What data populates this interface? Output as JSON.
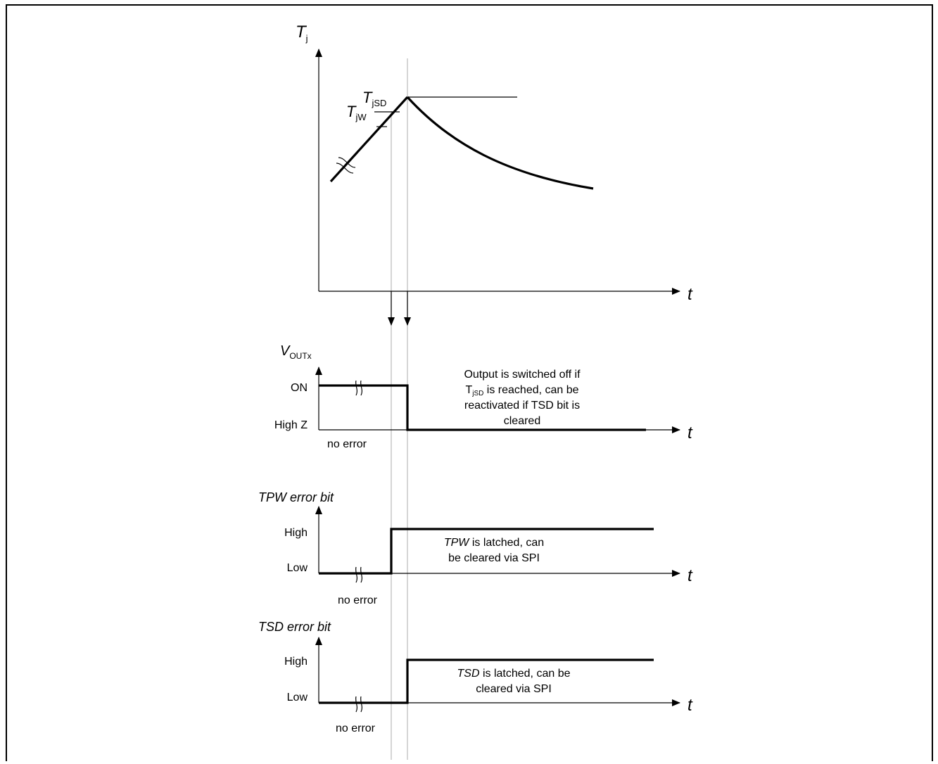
{
  "diagram": {
    "top_plot": {
      "y_axis_label": "T",
      "y_axis_sub": "j",
      "x_axis_label": "t",
      "tjsd_label": "T",
      "tjsd_sub": "jSD",
      "tjw_label": "T",
      "tjw_sub": "jW"
    },
    "vout_plot": {
      "y_axis_label": "V",
      "y_axis_sub": "OUTx",
      "level_high": "ON",
      "level_low": "High Z",
      "x_axis_label": "t",
      "state_text": "no error",
      "note_line1": "Output is switched off if",
      "note_line2_pre": "T",
      "note_line2_sub": "jSD",
      "note_line2_post": " is reached, can be",
      "note_line3": "reactivated if TSD bit is",
      "note_line4": "cleared"
    },
    "tpw_plot": {
      "title": "TPW error bit",
      "level_high": "High",
      "level_low": "Low",
      "x_axis_label": "t",
      "state_text": "no error",
      "note_ital": "TPW",
      "note_line1_rest": " is latched, can",
      "note_line2": "be cleared via SPI"
    },
    "tsd_plot": {
      "title": "TSD error bit",
      "level_high": "High",
      "level_low": "Low",
      "x_axis_label": "t",
      "state_text": "no error",
      "note_ital": "TSD",
      "note_line1_rest": " is latched, can be",
      "note_line2": "cleared via SPI"
    }
  }
}
